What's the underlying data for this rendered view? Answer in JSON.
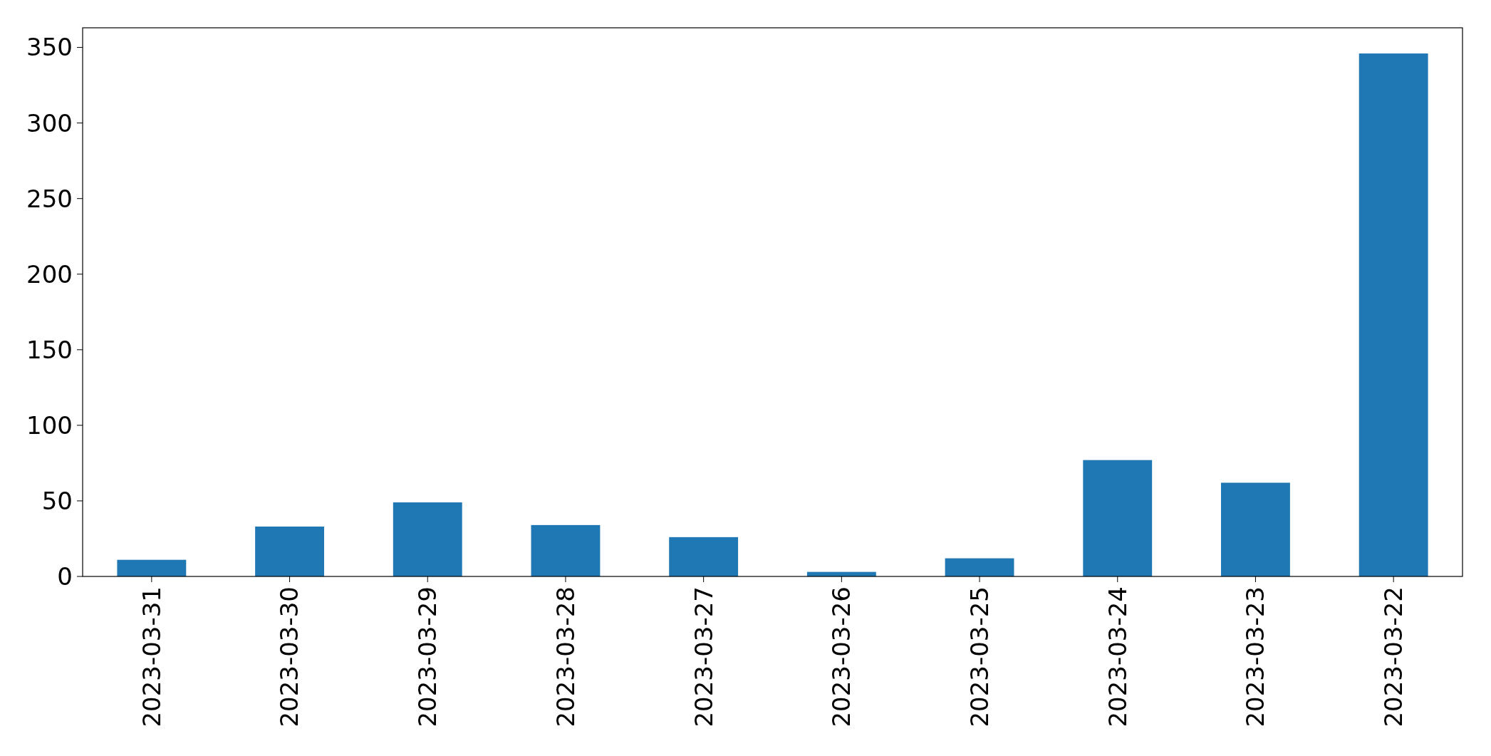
{
  "chart_data": {
    "type": "bar",
    "categories": [
      "2023-03-31",
      "2023-03-30",
      "2023-03-29",
      "2023-03-28",
      "2023-03-27",
      "2023-03-26",
      "2023-03-25",
      "2023-03-24",
      "2023-03-23",
      "2023-03-22"
    ],
    "values": [
      11,
      33,
      49,
      34,
      26,
      3,
      12,
      77,
      62,
      346
    ],
    "color": "#1f77b4",
    "ylim": [
      0,
      363
    ],
    "yticks": [
      0,
      50,
      100,
      150,
      200,
      250,
      300,
      350
    ],
    "grid": false
  }
}
